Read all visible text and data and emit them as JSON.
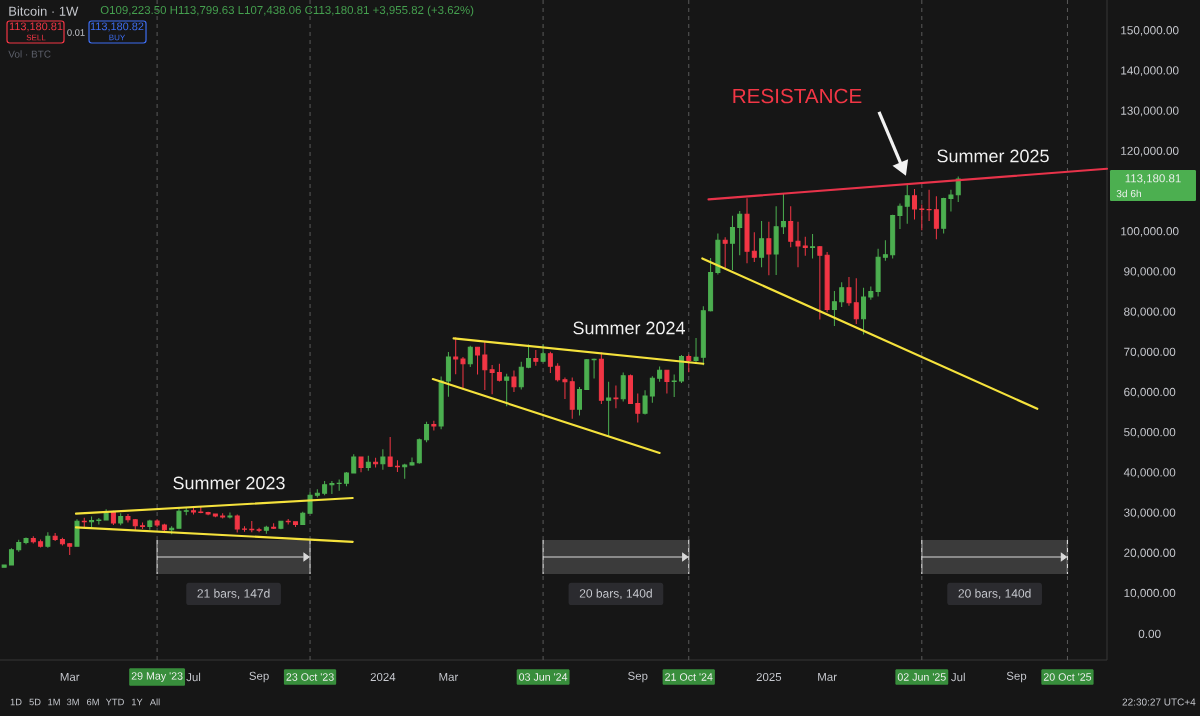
{
  "chart_data": {
    "type": "candlestick",
    "title": "Bitcoin · 1W",
    "subtitle": "O109,223.50 H113,799.63 L107,438.06 C113,180.81 +3,955.82 (+3.62%)",
    "x": [
      "2023-01-02",
      "2023-01-09",
      "2023-01-16",
      "2023-01-23",
      "2023-01-30",
      "2023-02-06",
      "2023-02-13",
      "2023-02-20",
      "2023-02-27",
      "2023-03-06",
      "2023-03-13",
      "2023-03-20",
      "2023-03-27",
      "2023-04-03",
      "2023-04-10",
      "2023-04-17",
      "2023-04-24",
      "2023-05-01",
      "2023-05-08",
      "2023-05-15",
      "2023-05-22",
      "2023-05-29",
      "2023-06-05",
      "2023-06-12",
      "2023-06-19",
      "2023-06-26",
      "2023-07-03",
      "2023-07-10",
      "2023-07-17",
      "2023-07-24",
      "2023-07-31",
      "2023-08-07",
      "2023-08-14",
      "2023-08-21",
      "2023-08-28",
      "2023-09-04",
      "2023-09-11",
      "2023-09-18",
      "2023-09-25",
      "2023-10-02",
      "2023-10-09",
      "2023-10-16",
      "2023-10-23",
      "2023-10-30",
      "2023-11-06",
      "2023-11-13",
      "2023-11-20",
      "2023-11-27",
      "2023-12-04",
      "2023-12-11",
      "2023-12-18",
      "2023-12-25",
      "2024-01-01",
      "2024-01-08",
      "2024-01-15",
      "2024-01-22",
      "2024-01-29",
      "2024-02-05",
      "2024-02-12",
      "2024-02-19",
      "2024-02-26",
      "2024-03-04",
      "2024-03-11",
      "2024-03-18",
      "2024-03-25",
      "2024-04-01",
      "2024-04-08",
      "2024-04-15",
      "2024-04-22",
      "2024-04-29",
      "2024-05-06",
      "2024-05-13",
      "2024-05-20",
      "2024-05-27",
      "2024-06-03",
      "2024-06-10",
      "2024-06-17",
      "2024-06-24",
      "2024-07-01",
      "2024-07-08",
      "2024-07-15",
      "2024-07-22",
      "2024-07-29",
      "2024-08-05",
      "2024-08-12",
      "2024-08-19",
      "2024-08-26",
      "2024-09-02",
      "2024-09-09",
      "2024-09-16",
      "2024-09-23",
      "2024-09-30",
      "2024-10-07",
      "2024-10-14",
      "2024-10-21",
      "2024-10-28",
      "2024-11-04",
      "2024-11-11",
      "2024-11-18",
      "2024-11-25",
      "2024-12-02",
      "2024-12-09",
      "2024-12-16",
      "2024-12-23",
      "2024-12-30",
      "2025-01-06",
      "2025-01-13",
      "2025-01-20",
      "2025-01-27",
      "2025-02-03",
      "2025-02-10",
      "2025-02-17",
      "2025-02-24",
      "2025-03-03",
      "2025-03-10",
      "2025-03-17",
      "2025-03-24",
      "2025-03-31",
      "2025-04-07",
      "2025-04-14",
      "2025-04-21",
      "2025-04-28",
      "2025-05-05",
      "2025-05-12",
      "2025-05-19",
      "2025-05-26",
      "2025-06-02",
      "2025-06-09",
      "2025-06-16",
      "2025-06-23",
      "2025-06-30",
      "2025-07-07"
    ],
    "ohlc": [
      [
        16600,
        17200,
        16500,
        17100
      ],
      [
        17100,
        21300,
        17100,
        20900
      ],
      [
        20900,
        23400,
        20400,
        22700
      ],
      [
        22700,
        24000,
        22300,
        23700
      ],
      [
        23700,
        24300,
        22500,
        22900
      ],
      [
        22900,
        23500,
        21500,
        21800
      ],
      [
        21800,
        25300,
        21400,
        24300
      ],
      [
        24300,
        25100,
        23100,
        23500
      ],
      [
        23500,
        23900,
        22000,
        22400
      ],
      [
        22400,
        22600,
        19600,
        21800
      ],
      [
        21800,
        28500,
        21700,
        28000
      ],
      [
        28000,
        28900,
        26600,
        27900
      ],
      [
        27900,
        29200,
        26500,
        28200
      ],
      [
        28200,
        28800,
        27200,
        28300
      ],
      [
        28300,
        31000,
        28200,
        30300
      ],
      [
        30300,
        30600,
        27100,
        27600
      ],
      [
        27600,
        30000,
        27000,
        29200
      ],
      [
        29200,
        29800,
        27700,
        28400
      ],
      [
        28400,
        28600,
        25800,
        26900
      ],
      [
        26900,
        27700,
        26100,
        26700
      ],
      [
        26700,
        28400,
        25900,
        28100
      ],
      [
        28100,
        28500,
        26500,
        27100
      ],
      [
        27100,
        27400,
        25400,
        25900
      ],
      [
        25900,
        26800,
        24800,
        26300
      ],
      [
        26300,
        31400,
        26300,
        30500
      ],
      [
        30500,
        31300,
        29500,
        30600
      ],
      [
        30600,
        31400,
        29700,
        30300
      ],
      [
        30300,
        31800,
        30000,
        30200
      ],
      [
        30200,
        30400,
        29500,
        29800
      ],
      [
        29800,
        29900,
        29000,
        29300
      ],
      [
        29300,
        30000,
        28700,
        29100
      ],
      [
        29100,
        30200,
        28700,
        29300
      ],
      [
        29300,
        29700,
        25200,
        26100
      ],
      [
        26100,
        26800,
        25400,
        26000
      ],
      [
        26000,
        28100,
        25300,
        25900
      ],
      [
        25900,
        26400,
        25300,
        25800
      ],
      [
        25800,
        26900,
        24900,
        26500
      ],
      [
        26500,
        27500,
        26100,
        26300
      ],
      [
        26300,
        28100,
        26000,
        28000
      ],
      [
        28000,
        28600,
        27200,
        27900
      ],
      [
        27900,
        28000,
        26600,
        27200
      ],
      [
        27200,
        30400,
        27100,
        30000
      ],
      [
        30000,
        35300,
        29900,
        34500
      ],
      [
        34500,
        36000,
        33900,
        35000
      ],
      [
        35000,
        38000,
        34500,
        37100
      ],
      [
        37100,
        38000,
        34800,
        37400
      ],
      [
        37400,
        38400,
        35600,
        37500
      ],
      [
        37500,
        40300,
        36700,
        40000
      ],
      [
        40000,
        44700,
        39900,
        44000
      ],
      [
        44000,
        44100,
        40200,
        41400
      ],
      [
        41400,
        44300,
        40600,
        42700
      ],
      [
        42700,
        43800,
        41400,
        42300
      ],
      [
        42300,
        45900,
        40800,
        44000
      ],
      [
        44000,
        49000,
        41500,
        41700
      ],
      [
        41700,
        43200,
        40300,
        41600
      ],
      [
        41600,
        42300,
        38600,
        42000
      ],
      [
        42000,
        43900,
        41800,
        42600
      ],
      [
        42600,
        48600,
        42300,
        48300
      ],
      [
        48300,
        52800,
        47700,
        52100
      ],
      [
        52100,
        53000,
        50600,
        51700
      ],
      [
        51700,
        64000,
        50900,
        62900
      ],
      [
        62900,
        70100,
        59000,
        68900
      ],
      [
        68900,
        73800,
        64600,
        68400
      ],
      [
        68400,
        68900,
        60800,
        67200
      ],
      [
        67200,
        71700,
        66400,
        71300
      ],
      [
        71300,
        71400,
        64500,
        69400
      ],
      [
        69400,
        72800,
        60700,
        65700
      ],
      [
        65700,
        66900,
        59600,
        65000
      ],
      [
        65000,
        67200,
        62800,
        63100
      ],
      [
        63100,
        64700,
        56600,
        63900
      ],
      [
        63900,
        65500,
        60200,
        61500
      ],
      [
        61500,
        67700,
        60800,
        66300
      ],
      [
        66300,
        72000,
        66100,
        68500
      ],
      [
        68500,
        70600,
        66700,
        67800
      ],
      [
        67800,
        72000,
        67600,
        69700
      ],
      [
        69700,
        70200,
        64900,
        66600
      ],
      [
        66600,
        67300,
        62800,
        63200
      ],
      [
        63200,
        63800,
        58400,
        62700
      ],
      [
        62700,
        63800,
        53500,
        55900
      ],
      [
        55900,
        61400,
        54300,
        60800
      ],
      [
        60800,
        68400,
        60700,
        68200
      ],
      [
        68200,
        68500,
        63500,
        68300
      ],
      [
        68300,
        70000,
        57200,
        58100
      ],
      [
        58100,
        62700,
        49000,
        58700
      ],
      [
        58700,
        61800,
        56100,
        58500
      ],
      [
        58500,
        65000,
        57800,
        64200
      ],
      [
        64200,
        64500,
        57200,
        57300
      ],
      [
        57300,
        59800,
        52600,
        54900
      ],
      [
        54900,
        60600,
        54600,
        59200
      ],
      [
        59200,
        64100,
        57500,
        63600
      ],
      [
        63600,
        66500,
        62700,
        65600
      ],
      [
        65600,
        65700,
        59800,
        62800
      ],
      [
        62800,
        64500,
        58900,
        62900
      ],
      [
        62900,
        69400,
        62400,
        69000
      ],
      [
        69000,
        69500,
        65100,
        68000
      ],
      [
        68000,
        73600,
        67500,
        68800
      ],
      [
        68800,
        81500,
        66800,
        80400
      ],
      [
        80400,
        93500,
        80200,
        89900
      ],
      [
        89900,
        99600,
        89400,
        97900
      ],
      [
        97900,
        98700,
        90800,
        97200
      ],
      [
        97200,
        104000,
        90500,
        101100
      ],
      [
        101100,
        105200,
        94200,
        104400
      ],
      [
        104400,
        108400,
        92200,
        95200
      ],
      [
        95200,
        99900,
        92500,
        93700
      ],
      [
        93700,
        102700,
        91200,
        98300
      ],
      [
        98300,
        102500,
        89200,
        94500
      ],
      [
        94500,
        106400,
        89300,
        101300
      ],
      [
        101300,
        109600,
        99500,
        102600
      ],
      [
        102600,
        106400,
        96200,
        97700
      ],
      [
        97700,
        102500,
        91200,
        96500
      ],
      [
        96500,
        98800,
        94100,
        96100
      ],
      [
        96100,
        99500,
        93400,
        96300
      ],
      [
        96300,
        96500,
        78200,
        94200
      ],
      [
        94200,
        95000,
        80000,
        80700
      ],
      [
        80700,
        85300,
        76600,
        82600
      ],
      [
        82600,
        87500,
        81300,
        86100
      ],
      [
        86100,
        88800,
        81600,
        82400
      ],
      [
        82400,
        88500,
        77100,
        78400
      ],
      [
        78400,
        86100,
        74500,
        83800
      ],
      [
        83800,
        86400,
        83100,
        85200
      ],
      [
        85200,
        95800,
        83900,
        93700
      ],
      [
        93700,
        97900,
        92800,
        94300
      ],
      [
        94300,
        104300,
        93400,
        104100
      ],
      [
        104100,
        107100,
        100700,
        106400
      ],
      [
        106400,
        112000,
        102000,
        109000
      ],
      [
        109000,
        110700,
        103100,
        105700
      ],
      [
        105700,
        106800,
        100400,
        105600
      ],
      [
        105600,
        110500,
        102700,
        105500
      ],
      [
        105500,
        108900,
        98200,
        100900
      ],
      [
        100900,
        108500,
        99600,
        108300
      ],
      [
        108300,
        110500,
        105100,
        109200
      ],
      [
        109223.5,
        113799.63,
        107438.06,
        113180.81
      ]
    ],
    "colors": [
      "#4caf50",
      "#4caf50",
      "#4caf50",
      "#4caf50",
      "#f23645",
      "#f23645",
      "#4caf50",
      "#f23645",
      "#f23645",
      "#f23645",
      "#4caf50",
      "#f23645",
      "#4caf50",
      "#4caf50",
      "#4caf50",
      "#f23645",
      "#4caf50",
      "#f23645",
      "#f23645",
      "#f23645",
      "#4caf50",
      "#f23645",
      "#f23645",
      "#4caf50",
      "#4caf50",
      "#4caf50",
      "#f23645",
      "#f23645",
      "#f23645",
      "#f23645",
      "#f23645",
      "#4caf50",
      "#f23645",
      "#f23645",
      "#f23645",
      "#f23645",
      "#4caf50",
      "#f23645",
      "#4caf50",
      "#f23645",
      "#f23645",
      "#4caf50",
      "#4caf50",
      "#4caf50",
      "#4caf50",
      "#4caf50",
      "#4caf50",
      "#4caf50",
      "#4caf50",
      "#f23645",
      "#4caf50",
      "#f23645",
      "#4caf50",
      "#f23645",
      "#f23645",
      "#4caf50",
      "#4caf50",
      "#4caf50",
      "#4caf50",
      "#f23645",
      "#4caf50",
      "#4caf50",
      "#f23645",
      "#f23645",
      "#4caf50",
      "#f23645",
      "#f23645",
      "#f23645",
      "#f23645",
      "#4caf50",
      "#f23645",
      "#4caf50",
      "#4caf50",
      "#f23645",
      "#4caf50",
      "#f23645",
      "#f23645",
      "#f23645",
      "#f23645",
      "#4caf50",
      "#4caf50",
      "#4caf50",
      "#f23645",
      "#4caf50",
      "#f23645",
      "#4caf50",
      "#f23645",
      "#f23645",
      "#4caf50",
      "#4caf50",
      "#4caf50",
      "#f23645",
      "#4caf50",
      "#4caf50",
      "#f23645",
      "#4caf50",
      "#4caf50",
      "#4caf50",
      "#4caf50",
      "#f23645",
      "#4caf50",
      "#4caf50",
      "#f23645",
      "#f23645",
      "#4caf50",
      "#f23645",
      "#4caf50",
      "#4caf50",
      "#f23645",
      "#f23645",
      "#f23645",
      "#4caf50",
      "#f23645",
      "#f23645",
      "#4caf50",
      "#4caf50",
      "#f23645",
      "#f23645",
      "#4caf50",
      "#4caf50",
      "#4caf50",
      "#4caf50",
      "#4caf50",
      "#4caf50",
      "#4caf50",
      "#f23645",
      "#f23645",
      "#f23645",
      "#f23645",
      "#4caf50",
      "#4caf50",
      "#4caf50"
    ],
    "series": [
      {
        "type": "line",
        "color": "#f5e23c",
        "x": [
          "2023-03-12",
          "2023-12-03"
        ],
        "values": [
          29900,
          33800
        ]
      },
      {
        "type": "line",
        "color": "#f5e23c",
        "x": [
          "2023-03-12",
          "2023-12-03"
        ],
        "values": [
          26500,
          22900
        ]
      },
      {
        "type": "line",
        "color": "#f5e23c",
        "x": [
          "2024-03-09",
          "2024-11-04"
        ],
        "values": [
          73500,
          67200
        ]
      },
      {
        "type": "line",
        "color": "#f5e23c",
        "x": [
          "2024-02-18",
          "2024-09-23"
        ],
        "values": [
          63400,
          45000
        ]
      },
      {
        "type": "line",
        "color": "#f5e23c",
        "x": [
          "2024-11-03",
          "2025-09-21"
        ],
        "values": [
          93400,
          56000
        ]
      },
      {
        "type": "line",
        "color": "#e8334a",
        "x": [
          "2024-11-09",
          "2025-11-27"
        ],
        "values": [
          108100,
          115700
        ]
      }
    ],
    "xlim": [
      "2022-12-29",
      "2025-11-27"
    ],
    "xticks": [
      {
        "value": "2023-03-06",
        "label": "Mar"
      },
      {
        "value": "2023-07-03",
        "label": "Jul"
      },
      {
        "value": "2023-09-04",
        "label": "Sep"
      },
      {
        "value": "2024-01-01",
        "label": "2024"
      },
      {
        "value": "2024-03-04",
        "label": "Mar"
      },
      {
        "value": "2024-09-02",
        "label": "Sep"
      },
      {
        "value": "2025-01-06",
        "label": "2025"
      },
      {
        "value": "2025-03-03",
        "label": "Mar"
      },
      {
        "value": "2025-07-07",
        "label": "Jul"
      },
      {
        "value": "2025-09-01",
        "label": "Sep"
      }
    ],
    "ylim": [
      -6500,
      157700
    ],
    "yticks": [
      {
        "value": 0,
        "label": "0.00"
      },
      {
        "value": 10000,
        "label": "10,000.00"
      },
      {
        "value": 20000,
        "label": "20,000.00"
      },
      {
        "value": 30000,
        "label": "30,000.00"
      },
      {
        "value": 40000,
        "label": "40,000.00"
      },
      {
        "value": 50000,
        "label": "50,000.00"
      },
      {
        "value": 60000,
        "label": "60,000.00"
      },
      {
        "value": 70000,
        "label": "70,000.00"
      },
      {
        "value": 80000,
        "label": "80,000.00"
      },
      {
        "value": 90000,
        "label": "90,000.00"
      },
      {
        "value": 100000,
        "label": "100,000.00"
      },
      {
        "value": 120000,
        "label": "120,000.00"
      },
      {
        "value": 130000,
        "label": "130,000.00"
      },
      {
        "value": 140000,
        "label": "140,000.00"
      },
      {
        "value": 150000,
        "label": "150,000.00"
      }
    ],
    "ref_lines": [
      {
        "axis": "x",
        "value": "2023-05-29",
        "label": "29 May '23",
        "color": "#5a5a5a",
        "line_style": "dashed"
      },
      {
        "axis": "x",
        "value": "2023-10-23",
        "label": "23 Oct '23",
        "color": "#5a5a5a",
        "line_style": "dashed"
      },
      {
        "axis": "x",
        "value": "2024-06-03",
        "label": "03 Jun '24",
        "color": "#5a5a5a",
        "line_style": "dashed"
      },
      {
        "axis": "x",
        "value": "2024-10-21",
        "label": "21 Oct '24",
        "color": "#5a5a5a",
        "line_style": "dashed"
      },
      {
        "axis": "x",
        "value": "2025-06-02",
        "label": "02 Jun '25",
        "color": "#5a5a5a",
        "line_style": "dashed"
      },
      {
        "axis": "x",
        "value": "2025-10-20",
        "label": "20 Oct '25",
        "color": "#5a5a5a",
        "line_style": "dashed"
      }
    ],
    "bands": [
      {
        "axis": "x",
        "from": "2023-05-29",
        "to": "2023-10-23",
        "label": "21 bars, 147d",
        "color": "#3b3b3b"
      },
      {
        "axis": "x",
        "from": "2024-06-03",
        "to": "2024-10-21",
        "label": "20 bars, 140d",
        "color": "#3b3b3b"
      },
      {
        "axis": "x",
        "from": "2025-06-02",
        "to": "2025-10-20",
        "label": "20 bars, 140d",
        "color": "#3b3b3b"
      }
    ],
    "annotations": [
      "RESISTANCE",
      "Summer 2023",
      "Summer 2024",
      "Summer 2025",
      "113,180.81",
      "3d 6h",
      "113,180.81",
      "SELL",
      "0.01",
      "113,180.82",
      "BUY",
      "Vol · BTC",
      "1D",
      "5D",
      "1M",
      "3M",
      "6M",
      "YTD",
      "1Y",
      "All",
      "22:30:27 UTC+4"
    ]
  }
}
